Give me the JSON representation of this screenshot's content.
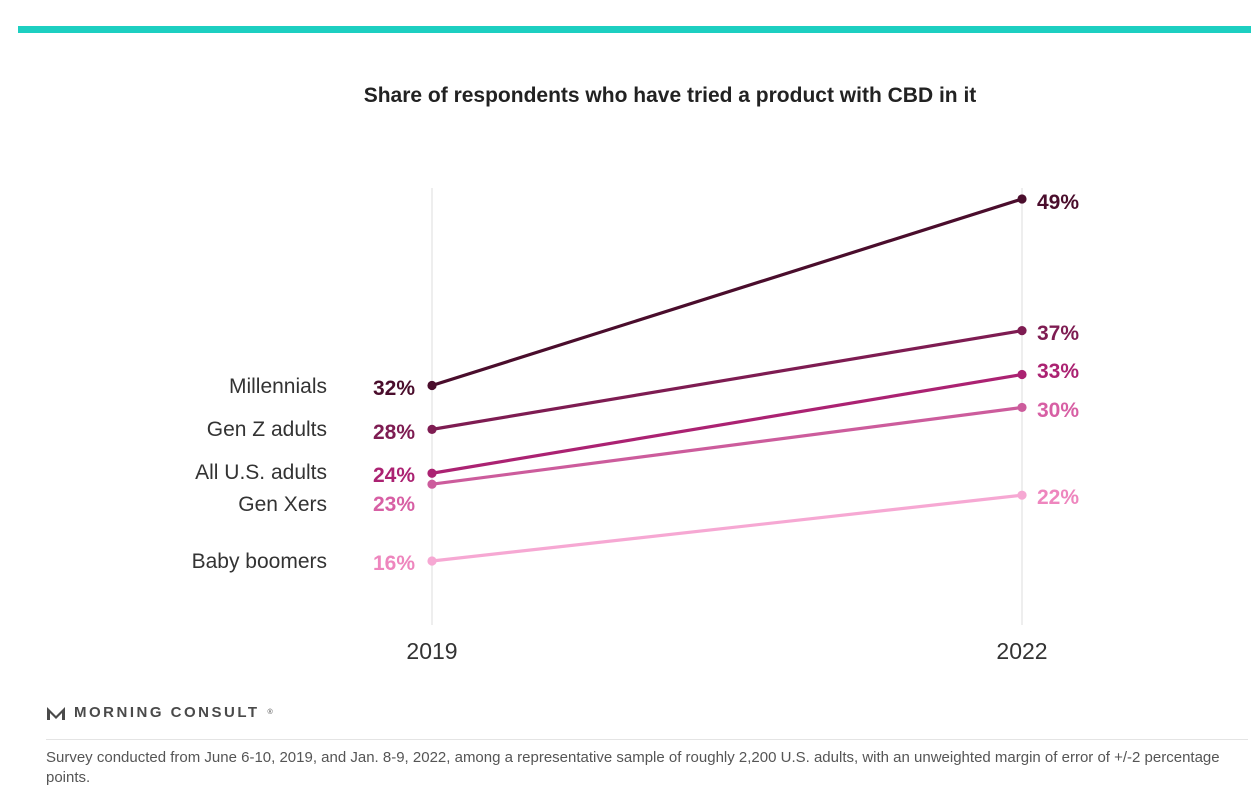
{
  "accent_color": "#1dcfc1",
  "brand": {
    "name": "MORNING CONSULT",
    "icon": "morning-consult-logo-icon"
  },
  "footnote": "Survey conducted from June 6-10, 2019, and Jan. 8-9, 2022, among a representative sample of roughly 2,200 U.S. adults, with an unweighted margin of error of +/-2 percentage points.",
  "chart_data": {
    "type": "line",
    "title": "Share of respondents who have tried a product with CBD in it",
    "x": [
      "2019",
      "2022"
    ],
    "xlabel": "",
    "ylabel": "",
    "ylim": [
      10,
      52
    ],
    "grid": "vertical lines at each year",
    "legend": "direct labels on left",
    "series": [
      {
        "name": "Millennials",
        "values": [
          32,
          49
        ],
        "labels": [
          "32%",
          "49%"
        ],
        "color": "#4a0d2c",
        "label_color": "#4a0d2c"
      },
      {
        "name": "Gen Z adults",
        "values": [
          28,
          37
        ],
        "labels": [
          "28%",
          "37%"
        ],
        "color": "#7e1c52",
        "label_color": "#7e1c52"
      },
      {
        "name": "All U.S. adults",
        "values": [
          24,
          33
        ],
        "labels": [
          "24%",
          "33%"
        ],
        "color": "#ab2272",
        "label_color": "#ab2272"
      },
      {
        "name": "Gen Xers",
        "values": [
          23,
          30
        ],
        "labels": [
          "23%",
          "30%"
        ],
        "color": "#cc5c9c",
        "label_color": "#d75fa4"
      },
      {
        "name": "Baby boomers",
        "values": [
          16,
          22
        ],
        "labels": [
          "16%",
          "22%"
        ],
        "color": "#f6a8d3",
        "label_color": "#ee86be"
      }
    ]
  }
}
